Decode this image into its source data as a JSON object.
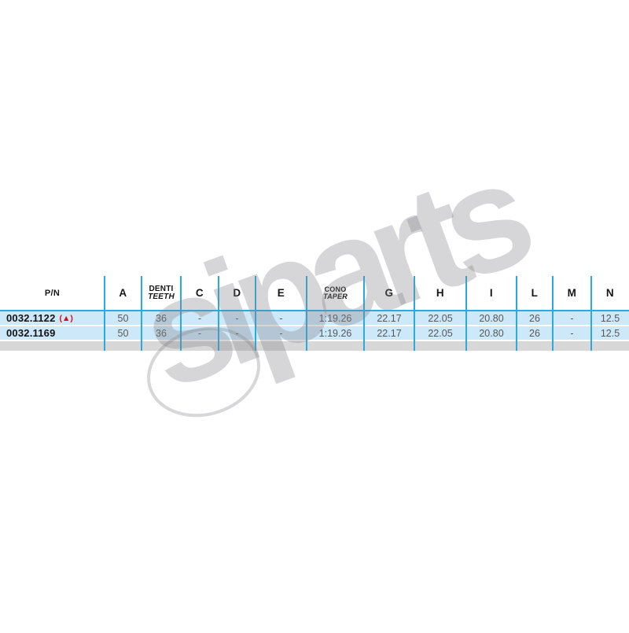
{
  "table": {
    "columns": [
      {
        "id": "pn",
        "line1": "P/N"
      },
      {
        "id": "a",
        "line1": "A"
      },
      {
        "id": "denti-teeth",
        "line1": "DENTI",
        "line2": "TEETH"
      },
      {
        "id": "c",
        "line1": "C"
      },
      {
        "id": "d",
        "line1": "D"
      },
      {
        "id": "e",
        "line1": "E"
      },
      {
        "id": "cono-taper",
        "line1": "CONO",
        "line2": "TAPER",
        "small": true
      },
      {
        "id": "g",
        "line1": "G"
      },
      {
        "id": "h",
        "line1": "H"
      },
      {
        "id": "i",
        "line1": "I"
      },
      {
        "id": "l",
        "line1": "L"
      },
      {
        "id": "m",
        "line1": "M"
      },
      {
        "id": "n",
        "line1": "N"
      }
    ],
    "rows": [
      {
        "flag": "(▲)",
        "cells": [
          "0032.1122",
          "50",
          "36",
          "-",
          "-",
          "-",
          "1:19.26",
          "22.17",
          "22.05",
          "20.80",
          "26",
          "-",
          "12.5"
        ]
      },
      {
        "flag": "",
        "cells": [
          "0032.1169",
          "50",
          "36",
          "-",
          "-",
          "-",
          "1:19.26",
          "22.17",
          "22.05",
          "20.80",
          "26",
          "-",
          "12.5"
        ]
      }
    ]
  },
  "watermark": {
    "text": "siparts"
  },
  "colors": {
    "accent_blue": "#29abe2",
    "row_background": "#cde8f8",
    "footer_band": "#d8d8d8",
    "flag_red": "#e30613",
    "value_gray": "#57585a",
    "text_black": "#141414",
    "watermark_gray": "#82828a"
  }
}
